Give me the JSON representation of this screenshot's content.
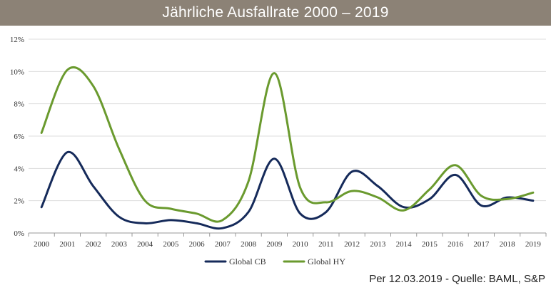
{
  "title": "Jährliche Ausfallrate 2000 – 2019",
  "footer": "Per 12.03.2019 - Quelle: BAML, S&P",
  "colors": {
    "title_bar": "#8c8276",
    "global_cb": "#152a5a",
    "global_hy": "#6a9a2e",
    "grid": "#dddddd"
  },
  "chart_data": {
    "type": "line",
    "x": [
      "2000",
      "2001",
      "2002",
      "2003",
      "2004",
      "2005",
      "2006",
      "2007",
      "2008",
      "2009",
      "2010",
      "2011",
      "2012",
      "2013",
      "2014",
      "2015",
      "2016",
      "2017",
      "2018",
      "2019"
    ],
    "y_ticks": [
      "0%",
      "2%",
      "4%",
      "6%",
      "8%",
      "10%",
      "12%"
    ],
    "ylim": [
      0,
      12
    ],
    "grid": "horizontal",
    "legend_position": "bottom",
    "series": [
      {
        "name": "Global CB",
        "color": "#152a5a",
        "values": [
          1.6,
          5.0,
          2.9,
          1.0,
          0.6,
          0.8,
          0.6,
          0.3,
          1.3,
          4.6,
          1.2,
          1.3,
          3.8,
          2.9,
          1.6,
          2.1,
          3.6,
          1.7,
          2.2,
          2.0
        ]
      },
      {
        "name": "Global HY",
        "color": "#6a9a2e",
        "values": [
          6.2,
          10.1,
          9.1,
          5.2,
          2.0,
          1.5,
          1.2,
          0.8,
          3.2,
          9.9,
          2.8,
          1.9,
          2.6,
          2.2,
          1.4,
          2.7,
          4.2,
          2.3,
          2.1,
          2.5
        ]
      }
    ]
  }
}
